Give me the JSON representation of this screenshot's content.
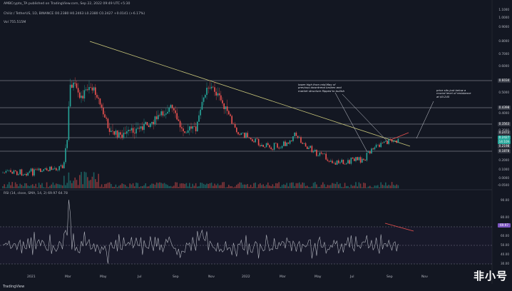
{
  "header": {
    "line1": "AMBCrypto_TA published on TradingView.com, Sep 22, 2022 09:49 UTC+5:30",
    "line2": "Chiliz / TetherUS, 1D, BINANCE O0.2380 H0.2463 L0.2380 C0.2427 +0.0141 (+6.17%)",
    "line3": "Vol  755.515M"
  },
  "rsi_header": "RSI (14, close, SMA, 14, 2)  69.97  64.78",
  "price_axis": [
    "1.1000",
    "1.0000",
    "0.9000",
    "0.8000",
    "0.7000",
    "0.6000",
    "0.5000",
    "0.4000",
    "0.3000",
    "0.2000",
    "0.1000",
    "0.0000",
    "-0.0500"
  ],
  "price_boxes": [
    {
      "label": "0.6034",
      "color": "#363a45"
    },
    {
      "label": "0.4398",
      "color": "#363a45"
    },
    {
      "label": "0.3563",
      "color": "#363a45"
    },
    {
      "label": "0.2472",
      "color": "#363a45"
    },
    {
      "label": "0.2427",
      "color": "#26a69a"
    },
    {
      "label": "14:10h",
      "color": "#26a69a"
    },
    {
      "label": "0.2198",
      "color": "#363a45"
    },
    {
      "label": "0.1878",
      "color": "#363a45"
    }
  ],
  "rsi_axis": [
    "90.00",
    "80.00",
    "70.00",
    "60.00",
    "50.00",
    "40.00",
    "30.00"
  ],
  "rsi_box": "69.97",
  "x_axis": [
    "2021",
    "Mar",
    "May",
    "Jul",
    "Sep",
    "Nov",
    "2022",
    "Mar",
    "May",
    "Jul",
    "Sep",
    "Nov"
  ],
  "annotations": {
    "note1": "lower high from mid-May of previous downtrend broken and market structure flipped to bullish",
    "note2": "price sits just below a crucial level of resistance at $0.245"
  },
  "watermark": "非小号",
  "brand": "TradingView"
}
